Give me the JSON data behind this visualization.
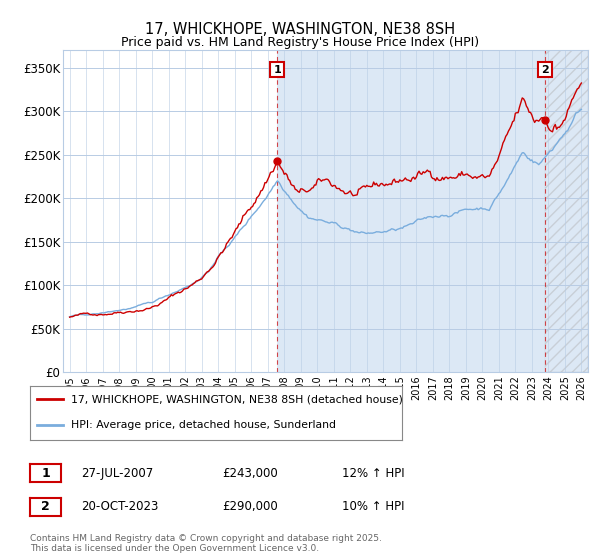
{
  "title": "17, WHICKHOPE, WASHINGTON, NE38 8SH",
  "subtitle": "Price paid vs. HM Land Registry's House Price Index (HPI)",
  "ylim": [
    0,
    370000
  ],
  "yticks": [
    0,
    50000,
    100000,
    150000,
    200000,
    250000,
    300000,
    350000
  ],
  "ytick_labels": [
    "£0",
    "£50K",
    "£100K",
    "£150K",
    "£200K",
    "£250K",
    "£300K",
    "£350K"
  ],
  "xlim_start": 1994.6,
  "xlim_end": 2026.4,
  "bg_color": "#ffffff",
  "plot_bg_color": "#ffffff",
  "shaded_bg_color": "#dce8f5",
  "grid_color": "#b8cce4",
  "red_color": "#cc0000",
  "blue_color": "#7aaddd",
  "marker1_x": 2007.57,
  "marker1_y": 243000,
  "marker2_x": 2023.8,
  "marker2_y": 290000,
  "legend_line1": "17, WHICKHOPE, WASHINGTON, NE38 8SH (detached house)",
  "legend_line2": "HPI: Average price, detached house, Sunderland",
  "ann1_label": "1",
  "ann1_date": "27-JUL-2007",
  "ann1_price": "£243,000",
  "ann1_hpi": "12% ↑ HPI",
  "ann2_label": "2",
  "ann2_date": "20-OCT-2023",
  "ann2_price": "£290,000",
  "ann2_hpi": "10% ↑ HPI",
  "copyright": "Contains HM Land Registry data © Crown copyright and database right 2025.\nThis data is licensed under the Open Government Licence v3.0."
}
